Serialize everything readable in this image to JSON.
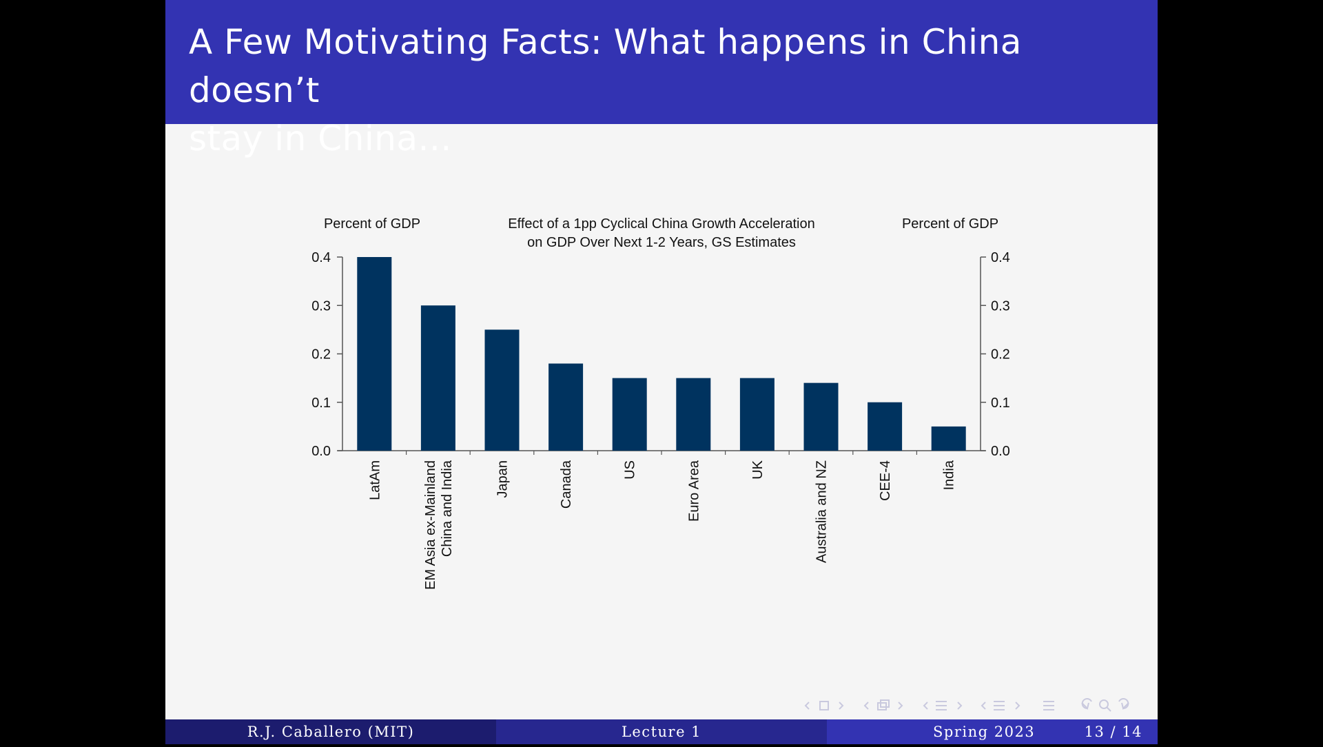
{
  "slide": {
    "title": "A Few Motivating Facts: What happens in China doesn’t stay in China...",
    "title_line1": "A Few Motivating Facts: What happens in China doesn’t",
    "title_line2": "stay in China...",
    "colors": {
      "title_bar": "#3333b2",
      "footer_left": "#1c1c6e",
      "footer_mid": "#27278f",
      "footer_right": "#3333b2",
      "bar": "#00335f",
      "slide_bg": "#f5f5f5"
    }
  },
  "footer": {
    "author": "R.J. Caballero (MIT)",
    "lecture": "Lecture 1",
    "date": "Spring 2023",
    "page": "13 / 14"
  },
  "chart_data": {
    "type": "bar",
    "title": "Effect of a 1pp Cyclical China Growth Acceleration on GDP Over Next 1-2 Years, GS Estimates",
    "title_lines": [
      "Effect of a 1pp Cyclical China Growth Acceleration",
      "on GDP Over Next 1-2 Years, GS Estimates"
    ],
    "ylabel_left": "Percent of GDP",
    "ylabel_right": "Percent of GDP",
    "ylim": [
      0,
      0.4
    ],
    "yticks": [
      "0.0",
      "0.1",
      "0.2",
      "0.3",
      "0.4"
    ],
    "categories": [
      "LatAm",
      "EM Asia ex-Mainland China and India",
      "Japan",
      "Canada",
      "US",
      "Euro Area",
      "UK",
      "Australia and NZ",
      "CEE-4",
      "India"
    ],
    "category_lines": [
      [
        "LatAm"
      ],
      [
        "EM Asia ex-Mainland",
        "China and India"
      ],
      [
        "Japan"
      ],
      [
        "Canada"
      ],
      [
        "US"
      ],
      [
        "Euro Area"
      ],
      [
        "UK"
      ],
      [
        "Australia and NZ"
      ],
      [
        "CEE-4"
      ],
      [
        "India"
      ]
    ],
    "values": [
      0.4,
      0.3,
      0.25,
      0.18,
      0.15,
      0.15,
      0.15,
      0.14,
      0.1,
      0.05
    ],
    "color": "#00335f",
    "legend": "none",
    "grid": false
  }
}
